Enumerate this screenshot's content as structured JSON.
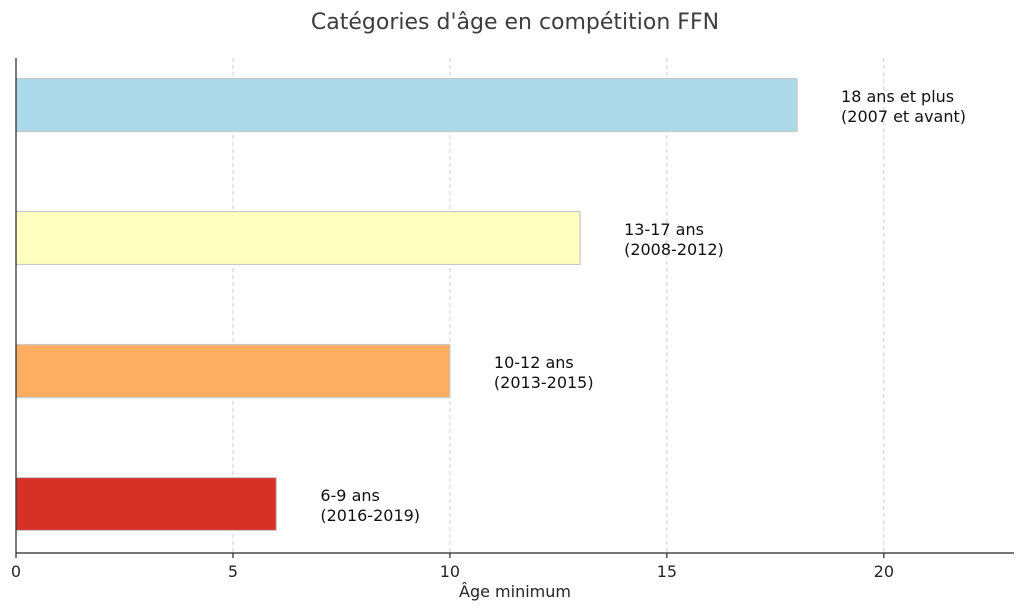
{
  "chart_data": {
    "type": "bar",
    "orientation": "horizontal",
    "title": "Catégories d'âge en compétition FFN",
    "xlabel": "Âge minimum",
    "ylabel": "",
    "xlim": [
      0,
      23
    ],
    "xticks": [
      0,
      5,
      10,
      15,
      20
    ],
    "grid": "x-dashed",
    "bars": [
      {
        "value": 6,
        "color": "#d73027",
        "label_lines": [
          "6-9 ans",
          "(2016-2019)"
        ]
      },
      {
        "value": 10,
        "color": "#fdae61",
        "label_lines": [
          "10-12 ans",
          "(2013-2015)"
        ]
      },
      {
        "value": 13,
        "color": "#ffffbf",
        "label_lines": [
          "13-17 ans",
          "(2008-2012)"
        ]
      },
      {
        "value": 18,
        "color": "#abd9e9",
        "label_lines": [
          "18 ans et plus",
          "(2007 et avant)"
        ]
      }
    ]
  }
}
